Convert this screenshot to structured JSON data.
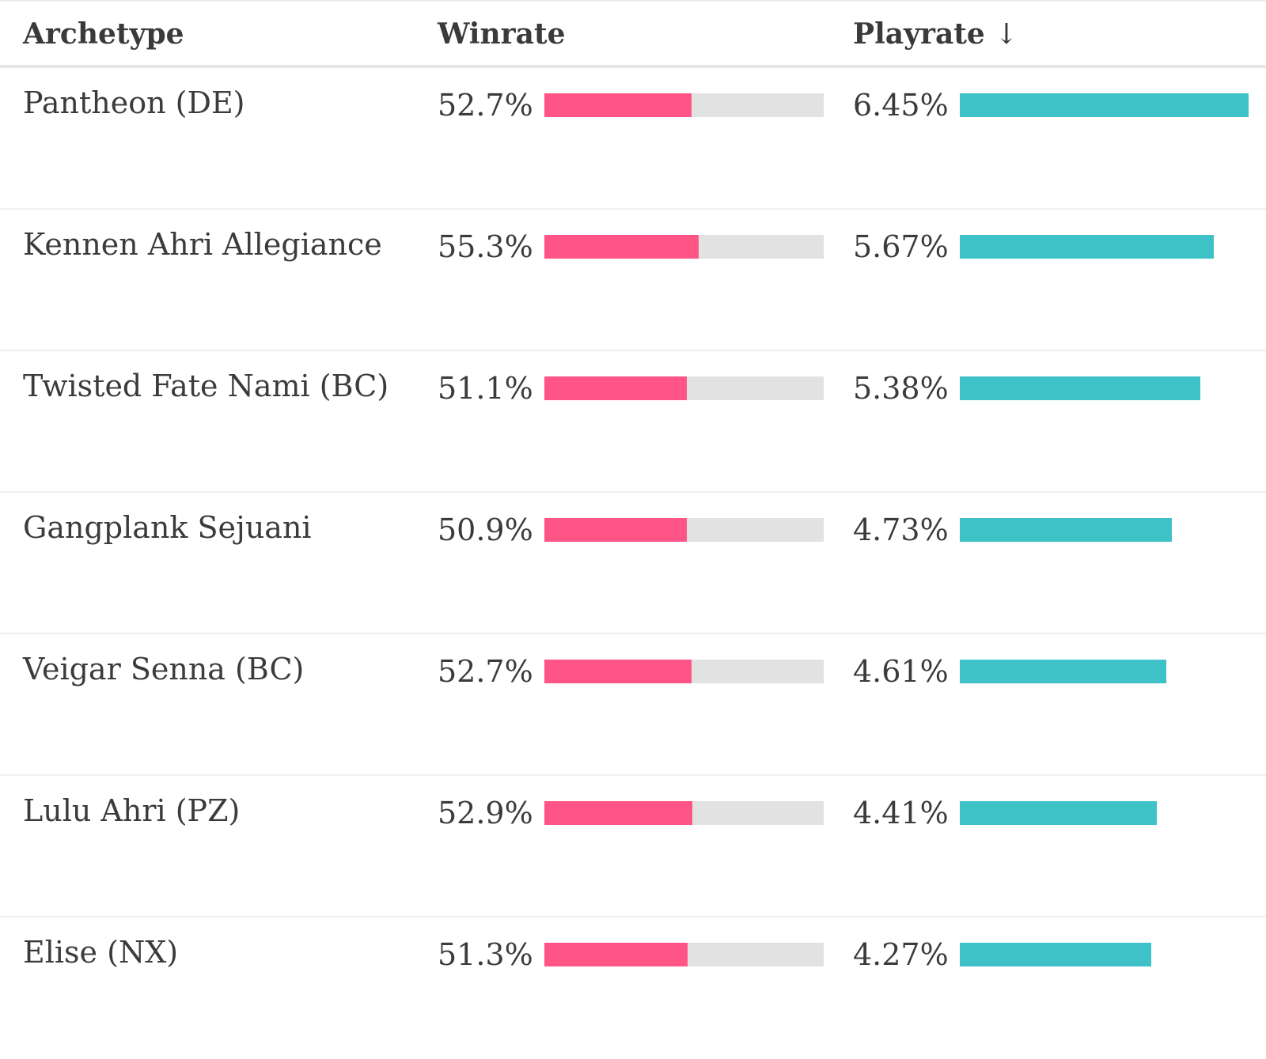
{
  "colors": {
    "winrate_bar": "#ff5486",
    "playrate_bar": "#3ec1c7",
    "track": "#e2e2e2"
  },
  "header": {
    "archetype": "Archetype",
    "winrate": "Winrate",
    "playrate": "Playrate",
    "sort_arrow": "↓"
  },
  "rows": [
    {
      "name": "Pantheon (DE)",
      "winrate": "52.7%",
      "playrate": "6.45%"
    },
    {
      "name": "Kennen Ahri Allegiance",
      "winrate": "55.3%",
      "playrate": "5.67%"
    },
    {
      "name": "Twisted Fate Nami (BC)",
      "winrate": "51.1%",
      "playrate": "5.38%"
    },
    {
      "name": "Gangplank Sejuani",
      "winrate": "50.9%",
      "playrate": "4.73%"
    },
    {
      "name": "Veigar Senna (BC)",
      "winrate": "52.7%",
      "playrate": "4.61%"
    },
    {
      "name": "Lulu Ahri (PZ)",
      "winrate": "52.9%",
      "playrate": "4.41%"
    },
    {
      "name": "Elise (NX)",
      "winrate": "51.3%",
      "playrate": "4.27%"
    }
  ]
}
